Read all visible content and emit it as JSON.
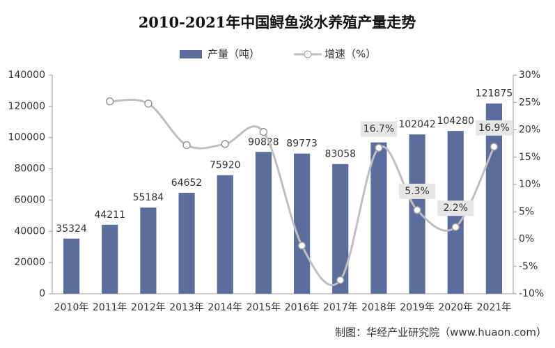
{
  "chart_data": {
    "type": "bar-line",
    "title": "2010-2021年中国鲟鱼淡水养殖产量走势",
    "categories": [
      "2010年",
      "2011年",
      "2012年",
      "2013年",
      "2014年",
      "2015年",
      "2016年",
      "2017年",
      "2018年",
      "2019年",
      "2020年",
      "2021年"
    ],
    "series": [
      {
        "name": "产量（吨）",
        "type": "bar",
        "color": "#5b6d9c",
        "values": [
          35324,
          44211,
          55184,
          64652,
          75920,
          90828,
          89773,
          83058,
          96914,
          102042,
          104280,
          121875
        ]
      },
      {
        "name": "增速（%）",
        "type": "line",
        "axis": "y2",
        "color": "#bfbfbf",
        "values": [
          null,
          25.2,
          24.8,
          17.2,
          17.4,
          19.6,
          -1.2,
          -7.5,
          16.7,
          5.3,
          2.2,
          16.9
        ],
        "value_labels": [
          null,
          null,
          null,
          null,
          null,
          null,
          null,
          null,
          "16.7%",
          "5.3%",
          "2.2%",
          "16.9%"
        ]
      }
    ],
    "ylim": [
      0,
      140000
    ],
    "yticks": [
      0,
      20000,
      40000,
      60000,
      80000,
      100000,
      120000,
      140000
    ],
    "y2lim": [
      -10,
      30
    ],
    "y2ticks": [
      {
        "value": -10,
        "label": "-10%"
      },
      {
        "value": -5,
        "label": "-5%"
      },
      {
        "value": 0,
        "label": "0%"
      },
      {
        "value": 5,
        "label": "5%"
      },
      {
        "value": 10,
        "label": "10%"
      },
      {
        "value": 15,
        "label": "15%"
      },
      {
        "value": 20,
        "label": "20%"
      },
      {
        "value": 25,
        "label": "25%"
      },
      {
        "value": 30,
        "label": "30%"
      }
    ],
    "source": "制图：华经产业研究院（www.huaon.com）"
  }
}
